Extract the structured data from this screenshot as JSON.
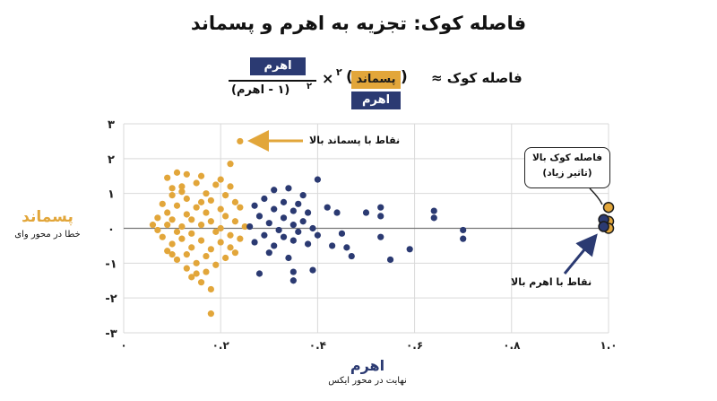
{
  "title": "فاصله کوک: تجزیه به اهرم و پسماند",
  "formula": {
    "lhs": "فاصله کوک ≈",
    "residual_term": "پسماند",
    "leverage_term": "اهرم",
    "superscript": "۲",
    "times": "×",
    "numerator": "اهرم",
    "denominator": "(۱ - اهرم)",
    "denominator_superscript": "۲"
  },
  "annotations": {
    "high_residual": "نقاط با پسماند بالا",
    "high_leverage": "نقاط با اهرم بالا",
    "callout_line1": "فاصله کوک بالا",
    "callout_line2": "(تاثیر زیاد)"
  },
  "axes": {
    "y_label": "پسماند",
    "y_sub": "خطا در محور وای",
    "x_label": "اهرم",
    "x_sub": "نهایت در محور ایکس"
  },
  "colors": {
    "low_leverage": "#e2a63a",
    "high_leverage": "#2b3a72",
    "grid": "#d9d9d9"
  },
  "chart_data": {
    "type": "scatter",
    "title": "فاصله کوک: تجزیه به اهرم و پسماند",
    "xlabel": "اهرم",
    "ylabel": "پسماند",
    "xlim": [
      0,
      1.0
    ],
    "ylim": [
      -3,
      3
    ],
    "x_ticks": [
      0,
      0.2,
      0.4,
      0.6,
      0.8,
      1.0
    ],
    "x_tick_labels": [
      "۰",
      "۰.۲",
      "۰.۴",
      "۰.۶",
      "۰.۸",
      "۱.۰"
    ],
    "y_ticks": [
      3,
      2,
      1,
      0,
      -1,
      -2,
      -3
    ],
    "y_tick_labels": [
      "۳",
      "۲",
      "۱",
      "۰",
      "-۱",
      "-۲",
      "-۳"
    ],
    "grid": true,
    "series": [
      {
        "color": "#e2a63a",
        "points": [
          [
            0.24,
            2.5
          ],
          [
            0.22,
            1.85
          ],
          [
            0.11,
            1.6
          ],
          [
            0.13,
            1.55
          ],
          [
            0.16,
            1.5
          ],
          [
            0.2,
            1.4
          ],
          [
            0.09,
            1.45
          ],
          [
            0.15,
            1.3
          ],
          [
            0.19,
            1.25
          ],
          [
            0.22,
            1.2
          ],
          [
            0.1,
            1.15
          ],
          [
            0.12,
            1.05
          ],
          [
            0.17,
            1.0
          ],
          [
            0.21,
            0.95
          ],
          [
            0.13,
            0.85
          ],
          [
            0.18,
            0.8
          ],
          [
            0.23,
            0.75
          ],
          [
            0.08,
            0.7
          ],
          [
            0.11,
            0.65
          ],
          [
            0.15,
            0.6
          ],
          [
            0.2,
            0.55
          ],
          [
            0.24,
            0.6
          ],
          [
            0.09,
            0.45
          ],
          [
            0.13,
            0.4
          ],
          [
            0.17,
            0.45
          ],
          [
            0.21,
            0.35
          ],
          [
            0.07,
            0.3
          ],
          [
            0.1,
            0.25
          ],
          [
            0.14,
            0.25
          ],
          [
            0.18,
            0.2
          ],
          [
            0.23,
            0.2
          ],
          [
            0.06,
            0.1
          ],
          [
            0.09,
            0.1
          ],
          [
            0.12,
            0.05
          ],
          [
            0.16,
            0.1
          ],
          [
            0.2,
            0.0
          ],
          [
            0.25,
            0.05
          ],
          [
            0.07,
            -0.05
          ],
          [
            0.11,
            -0.1
          ],
          [
            0.14,
            -0.15
          ],
          [
            0.19,
            -0.1
          ],
          [
            0.22,
            -0.2
          ],
          [
            0.08,
            -0.25
          ],
          [
            0.12,
            -0.3
          ],
          [
            0.16,
            -0.35
          ],
          [
            0.2,
            -0.4
          ],
          [
            0.24,
            -0.3
          ],
          [
            0.1,
            -0.45
          ],
          [
            0.14,
            -0.55
          ],
          [
            0.18,
            -0.6
          ],
          [
            0.22,
            -0.55
          ],
          [
            0.09,
            -0.65
          ],
          [
            0.13,
            -0.75
          ],
          [
            0.17,
            -0.8
          ],
          [
            0.21,
            -0.85
          ],
          [
            0.11,
            -0.9
          ],
          [
            0.15,
            -1.0
          ],
          [
            0.19,
            -1.05
          ],
          [
            0.13,
            -1.15
          ],
          [
            0.17,
            -1.25
          ],
          [
            0.14,
            -1.4
          ],
          [
            0.16,
            -1.55
          ],
          [
            0.18,
            -1.75
          ],
          [
            0.18,
            -2.45
          ],
          [
            0.1,
            0.95
          ],
          [
            0.12,
            1.2
          ],
          [
            0.16,
            0.75
          ],
          [
            0.1,
            -0.75
          ],
          [
            0.15,
            -1.3
          ],
          [
            0.23,
            -0.7
          ]
        ]
      },
      {
        "color": "#2b3a72",
        "points": [
          [
            0.34,
            1.15
          ],
          [
            0.4,
            1.4
          ],
          [
            0.31,
            1.1
          ],
          [
            0.37,
            0.95
          ],
          [
            0.29,
            0.85
          ],
          [
            0.33,
            0.75
          ],
          [
            0.36,
            0.7
          ],
          [
            0.42,
            0.6
          ],
          [
            0.27,
            0.65
          ],
          [
            0.31,
            0.55
          ],
          [
            0.35,
            0.5
          ],
          [
            0.38,
            0.45
          ],
          [
            0.44,
            0.45
          ],
          [
            0.28,
            0.35
          ],
          [
            0.33,
            0.3
          ],
          [
            0.37,
            0.2
          ],
          [
            0.3,
            0.15
          ],
          [
            0.35,
            0.1
          ],
          [
            0.26,
            0.05
          ],
          [
            0.39,
            0.0
          ],
          [
            0.32,
            -0.05
          ],
          [
            0.36,
            -0.1
          ],
          [
            0.29,
            -0.2
          ],
          [
            0.33,
            -0.25
          ],
          [
            0.4,
            -0.2
          ],
          [
            0.45,
            -0.15
          ],
          [
            0.27,
            -0.4
          ],
          [
            0.31,
            -0.5
          ],
          [
            0.35,
            -0.35
          ],
          [
            0.38,
            -0.45
          ],
          [
            0.43,
            -0.5
          ],
          [
            0.3,
            -0.7
          ],
          [
            0.34,
            -0.85
          ],
          [
            0.28,
            -1.3
          ],
          [
            0.35,
            -1.25
          ],
          [
            0.35,
            -1.5
          ],
          [
            0.39,
            -1.2
          ],
          [
            0.46,
            -0.55
          ],
          [
            0.47,
            -0.8
          ],
          [
            0.5,
            0.45
          ],
          [
            0.53,
            0.6
          ],
          [
            0.53,
            0.35
          ],
          [
            0.53,
            -0.25
          ],
          [
            0.55,
            -0.9
          ],
          [
            0.59,
            -0.6
          ],
          [
            0.64,
            0.5
          ],
          [
            0.64,
            0.3
          ],
          [
            0.7,
            -0.05
          ],
          [
            0.7,
            -0.3
          ]
        ]
      },
      {
        "color": "#e2a63a",
        "highlight": true,
        "points": [
          [
            1.0,
            0.6
          ],
          [
            1.0,
            0.2
          ],
          [
            1.0,
            0.0
          ]
        ]
      },
      {
        "color": "#2b3a72",
        "highlight": true,
        "points": [
          [
            0.99,
            0.25
          ],
          [
            0.99,
            0.05
          ]
        ]
      }
    ]
  }
}
